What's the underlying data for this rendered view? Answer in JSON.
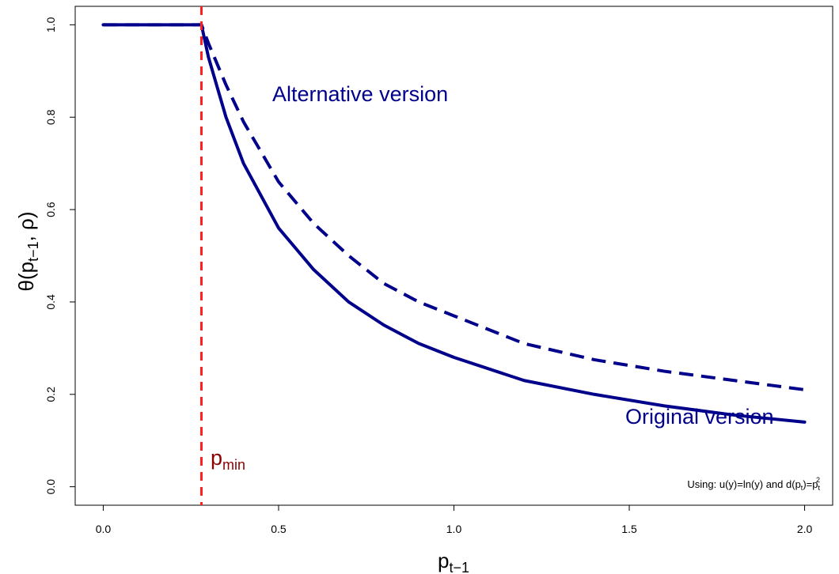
{
  "chart_data": {
    "type": "line",
    "title": "",
    "xlabel": "p",
    "xlabel_sub": "t−1",
    "ylabel_main": "θ(p",
    "ylabel_sub": "t−1",
    "ylabel_tail": ", ρ)",
    "xlim": [
      -0.08,
      2.08
    ],
    "ylim": [
      -0.04,
      1.04
    ],
    "x_ticks": [
      0.0,
      0.5,
      1.0,
      1.5,
      2.0
    ],
    "x_tick_labels": [
      "0.0",
      "0.5",
      "1.0",
      "1.5",
      "2.0"
    ],
    "y_ticks": [
      0.0,
      0.2,
      0.4,
      0.6,
      0.8,
      1.0
    ],
    "y_tick_labels": [
      "0.0",
      "0.2",
      "0.4",
      "0.6",
      "0.8",
      "1.0"
    ],
    "grid": false,
    "series": [
      {
        "name": "Original version",
        "style": "solid",
        "color": "#00008B",
        "x": [
          0.0,
          0.28,
          0.3,
          0.35,
          0.4,
          0.5,
          0.6,
          0.7,
          0.8,
          0.9,
          1.0,
          1.2,
          1.4,
          1.6,
          1.8,
          2.0
        ],
        "y": [
          1.0,
          1.0,
          0.93,
          0.8,
          0.7,
          0.56,
          0.47,
          0.4,
          0.35,
          0.31,
          0.28,
          0.23,
          0.2,
          0.175,
          0.155,
          0.14
        ]
      },
      {
        "name": "Alternative version",
        "style": "dashed",
        "color": "#00008B",
        "x": [
          0.0,
          0.28,
          0.3,
          0.35,
          0.4,
          0.5,
          0.6,
          0.7,
          0.8,
          0.9,
          1.0,
          1.2,
          1.4,
          1.6,
          1.8,
          2.0
        ],
        "y": [
          1.0,
          1.0,
          0.96,
          0.87,
          0.79,
          0.66,
          0.57,
          0.5,
          0.44,
          0.4,
          0.37,
          0.31,
          0.275,
          0.25,
          0.23,
          0.21
        ]
      }
    ],
    "vline": {
      "x": 0.28,
      "color": "#FF2020",
      "label": "p",
      "label_sub": "min",
      "label_color": "#8B0000"
    },
    "annotations": {
      "alternative": "Alternative version",
      "original": "Original version",
      "note_prefix": "Using: u(y)=ln(y) and d(p",
      "note_sub1": "t",
      "note_mid": ")=p",
      "note_sub2": "t",
      "note_sup": "2"
    }
  }
}
